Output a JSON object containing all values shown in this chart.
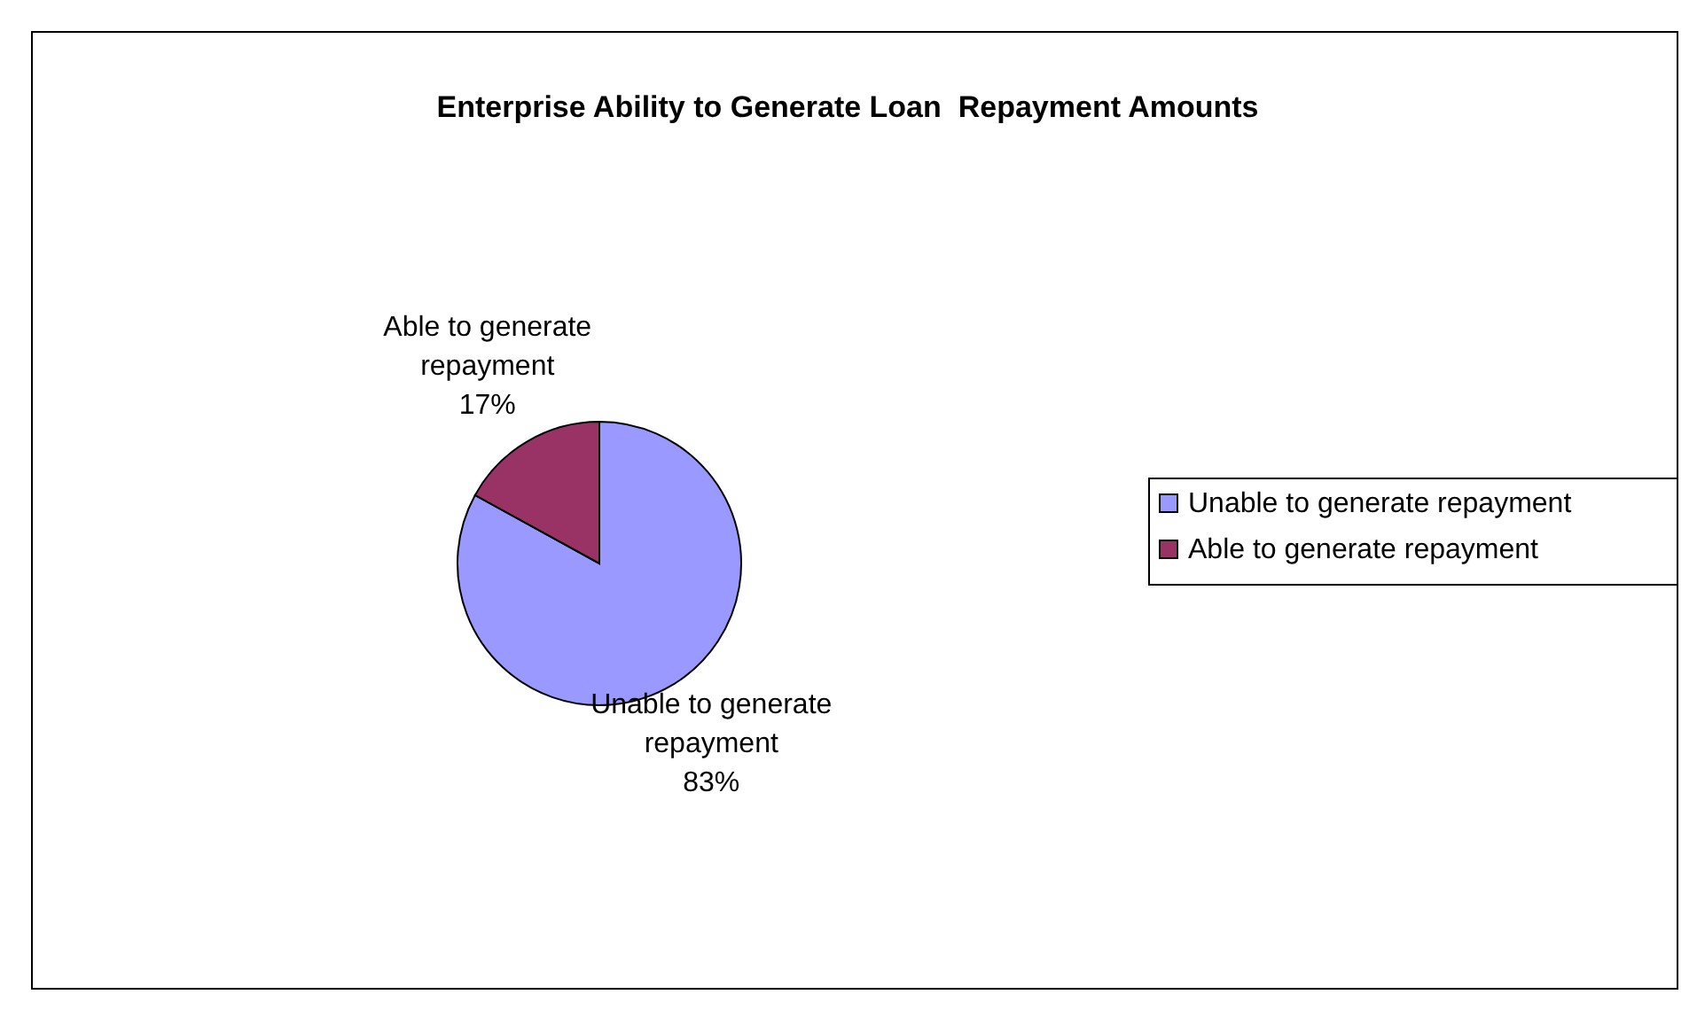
{
  "chart_data": {
    "type": "pie",
    "title": "Enterprise Ability to Generate Loan  Repayment Amounts",
    "categories": [
      "Unable to generate repayment",
      "Able to generate repayment"
    ],
    "values": [
      83,
      17
    ],
    "colors": [
      "#9999ff",
      "#993366"
    ],
    "value_labels": [
      "83%",
      "17%"
    ],
    "legend": "right"
  }
}
